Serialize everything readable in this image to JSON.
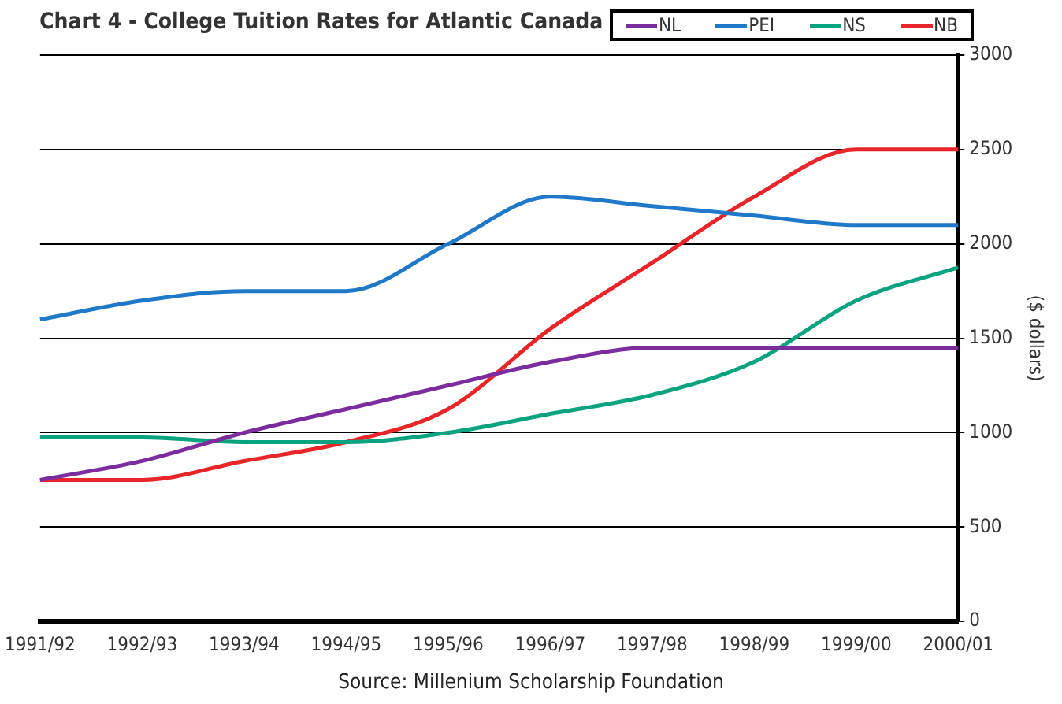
{
  "chart_data": {
    "type": "line",
    "title": "Chart 4 - College Tuition Rates for Atlantic Canada",
    "ylabel": "($ dollars)",
    "categories": [
      "1991/92",
      "1992/93",
      "1993/94",
      "1994/95",
      "1995/96",
      "1996/97",
      "1997/98",
      "1998/99",
      "1999/00",
      "2000/01"
    ],
    "series": [
      {
        "name": "NL",
        "color": "#7b2d9e",
        "values": [
          750,
          850,
          1000,
          1125,
          1250,
          1375,
          1450,
          1450,
          1450,
          1450
        ]
      },
      {
        "name": "PEI",
        "color": "#1f78c8",
        "values": [
          1600,
          1700,
          1750,
          1750,
          2000,
          2250,
          2200,
          2150,
          2100,
          2100
        ]
      },
      {
        "name": "NS",
        "color": "#0aa37f",
        "values": [
          975,
          975,
          950,
          950,
          1000,
          1100,
          1200,
          1375,
          1700,
          1875
        ]
      },
      {
        "name": "NB",
        "color": "#e8262a",
        "values": [
          750,
          750,
          850,
          950,
          1125,
          1550,
          1900,
          2250,
          2500,
          2500
        ]
      }
    ],
    "ylim": [
      0,
      3000
    ],
    "yticks": [
      0,
      500,
      1000,
      1500,
      2000,
      2500,
      3000
    ],
    "grid": "y",
    "legend": "top right",
    "marker": "none",
    "line_style": "solid",
    "annotations": [
      "Source: Millenium Scholarship Foundation"
    ]
  }
}
